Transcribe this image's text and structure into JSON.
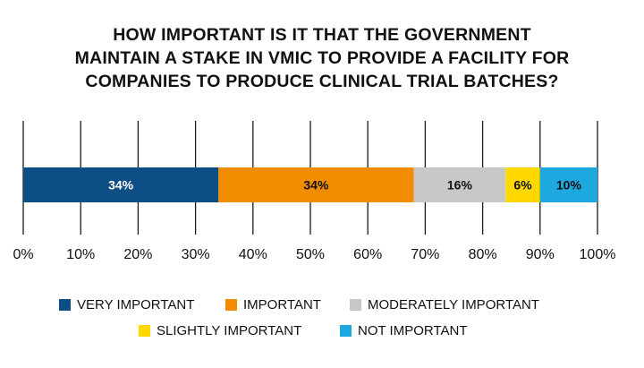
{
  "chart_data": {
    "type": "bar",
    "orientation": "horizontal-stacked",
    "title_lines": [
      "HOW IMPORTANT IS IT THAT THE GOVERNMENT",
      "MAINTAIN A STAKE IN VMIC TO PROVIDE A FACILITY FOR",
      "COMPANIES TO PRODUCE CLINICAL TRIAL BATCHES?"
    ],
    "xlim": [
      0,
      100
    ],
    "ticks": [
      "0%",
      "10%",
      "20%",
      "30%",
      "40%",
      "50%",
      "60%",
      "70%",
      "80%",
      "90%",
      "100%"
    ],
    "grid": true,
    "legend_position": "bottom",
    "series": [
      {
        "name": "VERY IMPORTANT",
        "value": 34,
        "label": "34%",
        "color": "#0d4e85",
        "label_color": "#ffffff"
      },
      {
        "name": "IMPORTANT",
        "value": 34,
        "label": "34%",
        "color": "#f28c00",
        "label_color": "#111111"
      },
      {
        "name": "MODERATELY IMPORTANT",
        "value": 16,
        "label": "16%",
        "color": "#c7c7c7",
        "label_color": "#111111"
      },
      {
        "name": "SLIGHTLY IMPORTANT",
        "value": 6,
        "label": "6%",
        "color": "#ffd800",
        "label_color": "#111111"
      },
      {
        "name": "NOT IMPORTANT",
        "value": 10,
        "label": "10%",
        "color": "#1ea8e0",
        "label_color": "#111111"
      }
    ]
  }
}
